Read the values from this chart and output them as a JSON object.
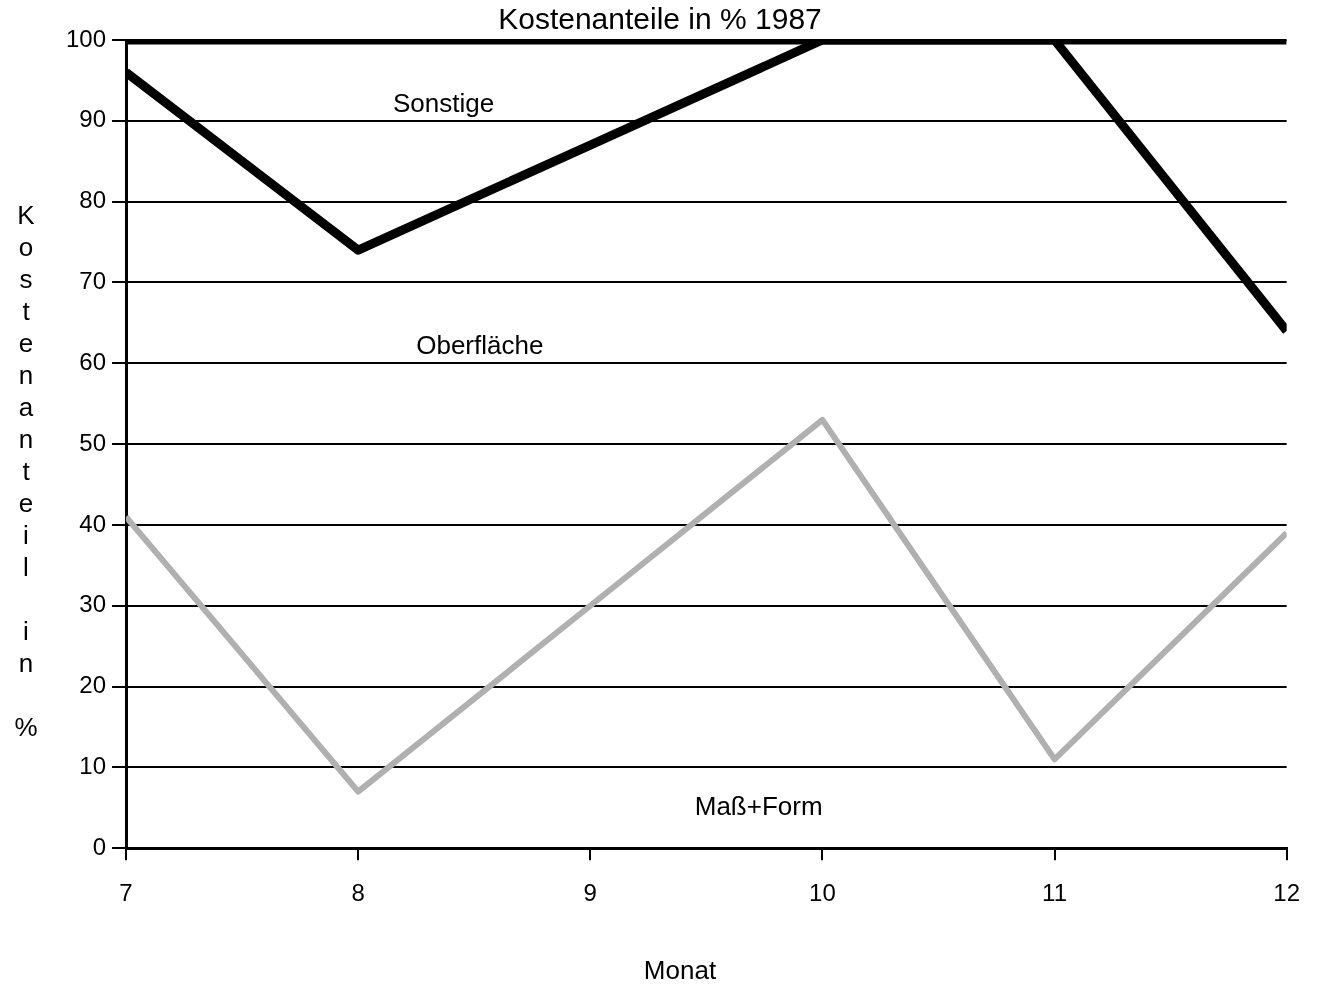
{
  "chart_data": {
    "type": "line",
    "title": "Kostenanteile in % 1987",
    "xlabel": "Monat",
    "ylabel": "Kostenanteil in %",
    "x": [
      7,
      8,
      9,
      10,
      11,
      12
    ],
    "series": [
      {
        "color": "#000000",
        "values": [
          100,
          100,
          100,
          100,
          100,
          100
        ]
      },
      {
        "color": "#000000",
        "values": [
          96,
          74,
          87,
          100,
          100,
          64
        ]
      },
      {
        "color": "#b0b0b0",
        "values": [
          41,
          7,
          30,
          53,
          11,
          39
        ]
      }
    ],
    "xlim": [
      7,
      12
    ],
    "xticks": [
      7,
      8,
      9,
      10,
      11,
      12
    ],
    "ylim": [
      0,
      100
    ],
    "yticks": [
      0,
      10,
      20,
      30,
      40,
      50,
      60,
      70,
      80,
      90,
      100
    ],
    "grid": "y",
    "legend": false,
    "marker": "none",
    "line_style": "solid",
    "annotations": [
      "Sonstige",
      "Oberfläche",
      "Maß+Form"
    ]
  }
}
